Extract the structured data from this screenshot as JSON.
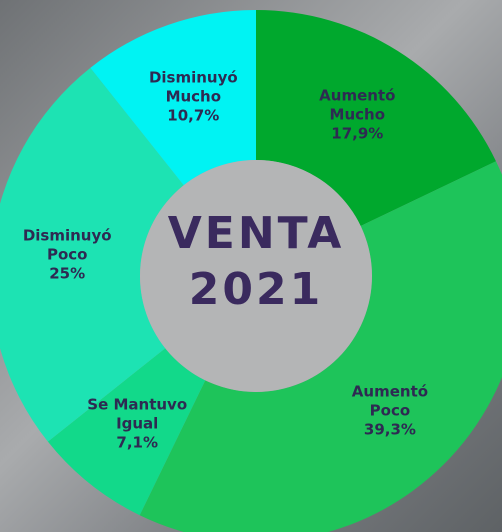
{
  "chart_data": {
    "type": "donut",
    "title": "VENTA 2021",
    "categories": [
      "Aumentó Mucho",
      "Aumentó Poco",
      "Se Mantuvo Igual",
      "Disminuyó Poco",
      "Disminuyó Mucho"
    ],
    "values": [
      17.9,
      39.3,
      7.1,
      25,
      10.7
    ],
    "value_labels": [
      "17,9%",
      "39,3%",
      "7,1%",
      "25%",
      "10,7%"
    ],
    "colors": [
      "#00a82d",
      "#1ec45a",
      "#12d98a",
      "#1de3b3",
      "#00f3f3"
    ]
  }
}
